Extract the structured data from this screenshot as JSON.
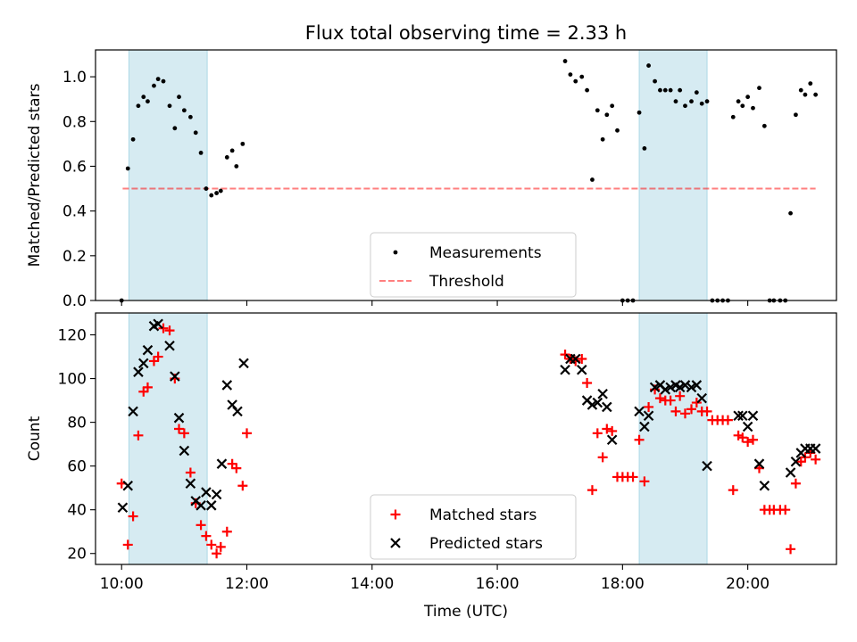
{
  "figure": {
    "title": "Flux total observing time = 2.33 h"
  },
  "colors": {
    "band": "#add8e6",
    "threshold": "#ff0000",
    "matched": "#ff0000",
    "predicted": "#000000",
    "measurement": "#000000"
  },
  "chart_data": [
    {
      "type": "scatter",
      "ylabel": "Matched/Predicted stars",
      "xlim": [
        "09:35",
        "21:25"
      ],
      "ylim": [
        0,
        1.12
      ],
      "x_ticks": [
        "10:00",
        "12:00",
        "14:00",
        "16:00",
        "18:00",
        "20:00"
      ],
      "y_ticks": [
        0.0,
        0.2,
        0.4,
        0.6,
        0.8,
        1.0
      ],
      "y_tick_labels": [
        "0.0",
        "0.2",
        "0.4",
        "0.6",
        "0.8",
        "1.0"
      ],
      "highlight_spans": [
        [
          "10:07",
          "11:22"
        ],
        [
          "18:16",
          "19:21"
        ]
      ],
      "legend": {
        "placement": "lower center",
        "entries": [
          "Measurements",
          "Threshold"
        ]
      },
      "threshold": {
        "name": "Threshold",
        "y": 0.5,
        "x_range": [
          "10:01",
          "21:05"
        ],
        "style": "dashed"
      },
      "series": [
        {
          "name": "Measurements",
          "marker": "dot",
          "points": [
            [
              "10:00",
              0.0
            ],
            [
              "10:06",
              0.59
            ],
            [
              "10:11",
              0.72
            ],
            [
              "10:16",
              0.87
            ],
            [
              "10:21",
              0.91
            ],
            [
              "10:25",
              0.89
            ],
            [
              "10:31",
              0.96
            ],
            [
              "10:35",
              0.99
            ],
            [
              "10:40",
              0.98
            ],
            [
              "10:46",
              0.87
            ],
            [
              "10:51",
              0.77
            ],
            [
              "10:55",
              0.91
            ],
            [
              "11:00",
              0.85
            ],
            [
              "11:06",
              0.82
            ],
            [
              "11:11",
              0.75
            ],
            [
              "11:16",
              0.66
            ],
            [
              "11:21",
              0.5
            ],
            [
              "11:26",
              0.47
            ],
            [
              "11:31",
              0.48
            ],
            [
              "11:35",
              0.49
            ],
            [
              "11:41",
              0.64
            ],
            [
              "11:46",
              0.67
            ],
            [
              "11:50",
              0.6
            ],
            [
              "11:56",
              0.7
            ],
            [
              "17:05",
              1.07
            ],
            [
              "17:10",
              1.01
            ],
            [
              "17:15",
              0.98
            ],
            [
              "17:21",
              1.0
            ],
            [
              "17:26",
              0.94
            ],
            [
              "17:31",
              0.54
            ],
            [
              "17:36",
              0.85
            ],
            [
              "17:41",
              0.72
            ],
            [
              "17:45",
              0.83
            ],
            [
              "17:50",
              0.87
            ],
            [
              "17:55",
              0.76
            ],
            [
              "18:00",
              0.0
            ],
            [
              "18:05",
              0.0
            ],
            [
              "18:10",
              0.0
            ],
            [
              "18:16",
              0.84
            ],
            [
              "18:21",
              0.68
            ],
            [
              "18:25",
              1.05
            ],
            [
              "18:31",
              0.98
            ],
            [
              "18:36",
              0.94
            ],
            [
              "18:41",
              0.94
            ],
            [
              "18:46",
              0.94
            ],
            [
              "18:51",
              0.89
            ],
            [
              "18:55",
              0.94
            ],
            [
              "19:00",
              0.87
            ],
            [
              "19:06",
              0.89
            ],
            [
              "19:11",
              0.93
            ],
            [
              "19:16",
              0.88
            ],
            [
              "19:21",
              0.89
            ],
            [
              "19:26",
              0.0
            ],
            [
              "19:31",
              0.0
            ],
            [
              "19:36",
              0.0
            ],
            [
              "19:41",
              0.0
            ],
            [
              "19:46",
              0.82
            ],
            [
              "19:51",
              0.89
            ],
            [
              "19:55",
              0.87
            ],
            [
              "20:00",
              0.91
            ],
            [
              "20:05",
              0.86
            ],
            [
              "20:11",
              0.95
            ],
            [
              "20:16",
              0.78
            ],
            [
              "20:21",
              0.0
            ],
            [
              "20:25",
              0.0
            ],
            [
              "20:31",
              0.0
            ],
            [
              "20:36",
              0.0
            ],
            [
              "20:41",
              0.39
            ],
            [
              "20:46",
              0.83
            ],
            [
              "20:51",
              0.94
            ],
            [
              "20:55",
              0.92
            ],
            [
              "21:00",
              0.97
            ],
            [
              "21:05",
              0.92
            ]
          ]
        }
      ]
    },
    {
      "type": "scatter",
      "xlabel": "Time (UTC)",
      "ylabel": "Count",
      "xlim": [
        "09:35",
        "21:25"
      ],
      "ylim": [
        15,
        130
      ],
      "x_ticks": [
        "10:00",
        "12:00",
        "14:00",
        "16:00",
        "18:00",
        "20:00"
      ],
      "y_ticks": [
        20,
        40,
        60,
        80,
        100,
        120
      ],
      "y_tick_labels": [
        "20",
        "40",
        "60",
        "80",
        "100",
        "120"
      ],
      "highlight_spans": [
        [
          "10:07",
          "11:22"
        ],
        [
          "18:16",
          "19:21"
        ]
      ],
      "legend": {
        "placement": "lower center",
        "entries": [
          "Matched stars",
          "Predicted stars"
        ]
      },
      "series": [
        {
          "name": "Matched stars",
          "marker": "plus",
          "points": [
            [
              "10:00",
              52
            ],
            [
              "10:06",
              24
            ],
            [
              "10:11",
              37
            ],
            [
              "10:16",
              74
            ],
            [
              "10:21",
              94
            ],
            [
              "10:25",
              96
            ],
            [
              "10:31",
              108
            ],
            [
              "10:35",
              110
            ],
            [
              "10:40",
              123
            ],
            [
              "10:46",
              122
            ],
            [
              "10:51",
              100
            ],
            [
              "10:55",
              77
            ],
            [
              "11:00",
              75
            ],
            [
              "11:06",
              57
            ],
            [
              "11:11",
              43
            ],
            [
              "11:16",
              33
            ],
            [
              "11:21",
              28
            ],
            [
              "11:26",
              24
            ],
            [
              "11:31",
              20
            ],
            [
              "11:35",
              23
            ],
            [
              "11:41",
              30
            ],
            [
              "11:46",
              61
            ],
            [
              "11:50",
              59
            ],
            [
              "11:56",
              51
            ],
            [
              "12:00",
              75
            ],
            [
              "17:05",
              111
            ],
            [
              "17:10",
              109
            ],
            [
              "17:15",
              108
            ],
            [
              "17:21",
              109
            ],
            [
              "17:26",
              98
            ],
            [
              "17:31",
              49
            ],
            [
              "17:36",
              75
            ],
            [
              "17:41",
              64
            ],
            [
              "17:45",
              77
            ],
            [
              "17:50",
              76
            ],
            [
              "17:55",
              55
            ],
            [
              "18:00",
              55
            ],
            [
              "18:05",
              55
            ],
            [
              "18:10",
              55
            ],
            [
              "18:16",
              72
            ],
            [
              "18:21",
              53
            ],
            [
              "18:25",
              87
            ],
            [
              "18:31",
              95
            ],
            [
              "18:36",
              91
            ],
            [
              "18:41",
              90
            ],
            [
              "18:46",
              90
            ],
            [
              "18:51",
              85
            ],
            [
              "18:55",
              92
            ],
            [
              "19:00",
              84
            ],
            [
              "19:06",
              86
            ],
            [
              "19:11",
              89
            ],
            [
              "19:16",
              85
            ],
            [
              "19:21",
              85
            ],
            [
              "19:26",
              81
            ],
            [
              "19:31",
              81
            ],
            [
              "19:36",
              81
            ],
            [
              "19:41",
              81
            ],
            [
              "19:46",
              49
            ],
            [
              "19:51",
              74
            ],
            [
              "19:55",
              73
            ],
            [
              "20:00",
              71
            ],
            [
              "20:05",
              72
            ],
            [
              "20:11",
              59
            ],
            [
              "20:16",
              40
            ],
            [
              "20:21",
              40
            ],
            [
              "20:25",
              40
            ],
            [
              "20:31",
              40
            ],
            [
              "20:36",
              40
            ],
            [
              "20:41",
              22
            ],
            [
              "20:46",
              52
            ],
            [
              "20:51",
              62
            ],
            [
              "20:55",
              64
            ],
            [
              "21:00",
              66
            ],
            [
              "21:05",
              63
            ]
          ]
        },
        {
          "name": "Predicted stars",
          "marker": "x",
          "points": [
            [
              "10:01",
              41
            ],
            [
              "10:06",
              51
            ],
            [
              "10:11",
              85
            ],
            [
              "10:16",
              103
            ],
            [
              "10:21",
              107
            ],
            [
              "10:25",
              113
            ],
            [
              "10:31",
              124
            ],
            [
              "10:35",
              125
            ],
            [
              "10:46",
              115
            ],
            [
              "10:51",
              101
            ],
            [
              "10:55",
              82
            ],
            [
              "11:00",
              67
            ],
            [
              "11:06",
              52
            ],
            [
              "11:11",
              44
            ],
            [
              "11:16",
              42
            ],
            [
              "11:21",
              48
            ],
            [
              "11:26",
              42
            ],
            [
              "11:31",
              47
            ],
            [
              "11:36",
              61
            ],
            [
              "11:41",
              97
            ],
            [
              "11:46",
              88
            ],
            [
              "11:51",
              85
            ],
            [
              "11:57",
              107
            ],
            [
              "17:05",
              104
            ],
            [
              "17:10",
              109
            ],
            [
              "17:15",
              109
            ],
            [
              "17:21",
              104
            ],
            [
              "17:26",
              90
            ],
            [
              "17:31",
              88
            ],
            [
              "17:36",
              89
            ],
            [
              "17:41",
              93
            ],
            [
              "17:45",
              87
            ],
            [
              "17:50",
              72
            ],
            [
              "18:16",
              85
            ],
            [
              "18:21",
              78
            ],
            [
              "18:25",
              83
            ],
            [
              "18:31",
              96
            ],
            [
              "18:36",
              97
            ],
            [
              "18:41",
              95
            ],
            [
              "18:46",
              96
            ],
            [
              "18:51",
              97
            ],
            [
              "18:55",
              96
            ],
            [
              "19:00",
              97
            ],
            [
              "19:06",
              96
            ],
            [
              "19:11",
              97
            ],
            [
              "19:16",
              91
            ],
            [
              "19:21",
              60
            ],
            [
              "19:51",
              83
            ],
            [
              "19:55",
              83
            ],
            [
              "20:00",
              78
            ],
            [
              "20:05",
              83
            ],
            [
              "20:11",
              61
            ],
            [
              "20:16",
              51
            ],
            [
              "20:41",
              57
            ],
            [
              "20:46",
              62
            ],
            [
              "20:51",
              66
            ],
            [
              "20:55",
              68
            ],
            [
              "21:00",
              68
            ],
            [
              "21:05",
              68
            ]
          ]
        }
      ]
    }
  ]
}
